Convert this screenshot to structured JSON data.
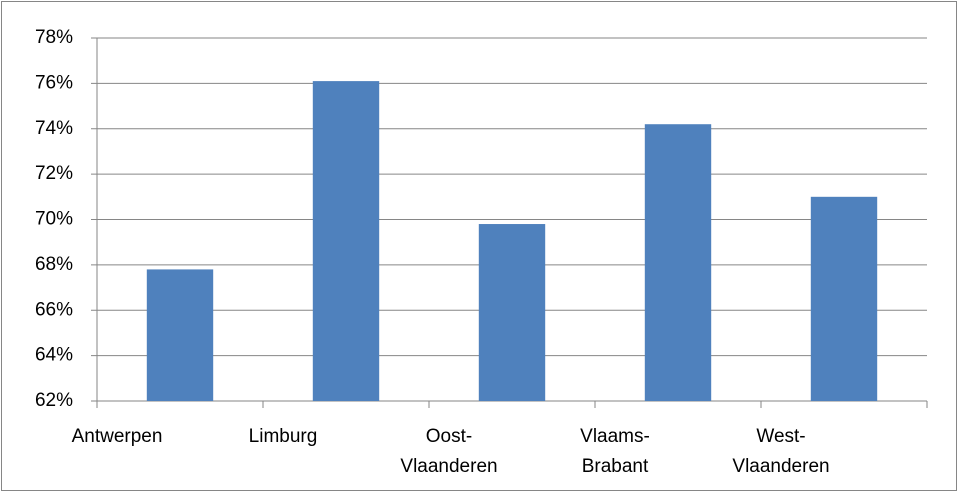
{
  "chart_data": {
    "type": "bar",
    "categories": [
      "Antwerpen",
      "Limburg",
      "Oost-Vlaanderen",
      "Vlaams-Brabant",
      "West-Vlaanderen"
    ],
    "values": [
      67.8,
      76.1,
      69.8,
      74.2,
      71.0
    ],
    "color": "#4f81bd",
    "ylim": [
      62,
      78
    ],
    "yticks": [
      {
        "value": 62,
        "label": "62%"
      },
      {
        "value": 64,
        "label": "64%"
      },
      {
        "value": 66,
        "label": "66%"
      },
      {
        "value": 68,
        "label": "68%"
      },
      {
        "value": 70,
        "label": "70%"
      },
      {
        "value": 72,
        "label": "72%"
      },
      {
        "value": 74,
        "label": "74%"
      },
      {
        "value": 76,
        "label": "76%"
      },
      {
        "value": 78,
        "label": "78%"
      }
    ],
    "grid": true
  }
}
